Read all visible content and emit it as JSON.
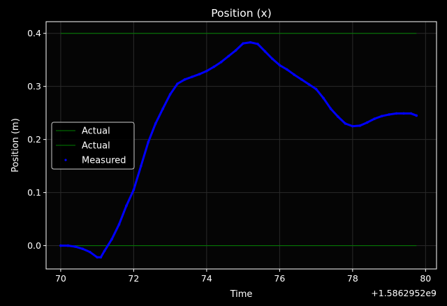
{
  "chart_data": {
    "type": "line",
    "title": "Position (x)",
    "xlabel": "Time",
    "ylabel": "Position (m)",
    "x_offset_label": "+1.5862952e9",
    "xlim": [
      69.6,
      80.3
    ],
    "ylim": [
      -0.044,
      0.422
    ],
    "x_ticks": [
      {
        "value": 70,
        "label": "70"
      },
      {
        "value": 72,
        "label": "72"
      },
      {
        "value": 74,
        "label": "74"
      },
      {
        "value": 76,
        "label": "76"
      },
      {
        "value": 78,
        "label": "78"
      },
      {
        "value": 80,
        "label": "80"
      }
    ],
    "y_ticks": [
      {
        "value": 0.0,
        "label": "0.0"
      },
      {
        "value": 0.1,
        "label": "0.1"
      },
      {
        "value": 0.2,
        "label": "0.2"
      },
      {
        "value": 0.3,
        "label": "0.3"
      },
      {
        "value": 0.4,
        "label": "0.4"
      }
    ],
    "grid": true,
    "legend_position": "center-left",
    "series": [
      {
        "name": "Actual",
        "style": "line",
        "color": "#008000",
        "x": [
          70.0,
          79.75
        ],
        "y": [
          0.4,
          0.4
        ]
      },
      {
        "name": "Actual",
        "style": "line",
        "color": "#008000",
        "x": [
          70.0,
          79.75
        ],
        "y": [
          0.0,
          0.0
        ]
      },
      {
        "name": "Measured",
        "style": "points",
        "color": "#0000ff",
        "x": [
          70.0,
          70.2,
          70.4,
          70.6,
          70.8,
          71.0,
          71.1,
          71.2,
          71.4,
          71.6,
          71.8,
          72.0,
          72.2,
          72.4,
          72.6,
          72.8,
          73.0,
          73.2,
          73.4,
          73.6,
          73.8,
          74.0,
          74.2,
          74.4,
          74.6,
          74.8,
          75.0,
          75.2,
          75.4,
          75.6,
          75.8,
          76.0,
          76.2,
          76.4,
          76.6,
          76.8,
          77.0,
          77.2,
          77.4,
          77.6,
          77.8,
          78.0,
          78.2,
          78.4,
          78.6,
          78.8,
          79.0,
          79.2,
          79.4,
          79.6,
          79.75
        ],
        "y": [
          0.0,
          0.0,
          -0.002,
          -0.006,
          -0.012,
          -0.022,
          -0.022,
          -0.01,
          0.012,
          0.04,
          0.075,
          0.105,
          0.15,
          0.195,
          0.23,
          0.258,
          0.285,
          0.305,
          0.313,
          0.318,
          0.323,
          0.329,
          0.337,
          0.346,
          0.357,
          0.368,
          0.381,
          0.383,
          0.38,
          0.366,
          0.352,
          0.34,
          0.332,
          0.322,
          0.313,
          0.304,
          0.295,
          0.278,
          0.258,
          0.243,
          0.23,
          0.225,
          0.226,
          0.232,
          0.239,
          0.244,
          0.247,
          0.249,
          0.249,
          0.249,
          0.245
        ]
      }
    ]
  }
}
